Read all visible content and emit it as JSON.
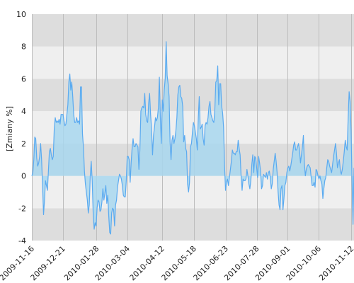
{
  "chart_data": {
    "type": "area",
    "ylabel": "[Zmiany %]",
    "ylim": [
      -4,
      10
    ],
    "y_ticks": [
      "-4",
      "-2",
      "0",
      "2",
      "4",
      "6",
      "8",
      "10"
    ],
    "x_ticks": [
      "2009-11-16",
      "2009-12-21",
      "2010-01-28",
      "2010-03-04",
      "2010-04-12",
      "2010-05-18",
      "2010-06-23",
      "2010-07-28",
      "2010-09-01",
      "2010-10-06",
      "2010-11-12"
    ],
    "x_range": [
      "2009-11-16",
      "2010-11-15"
    ],
    "grid": "alternating horizontal bands every 2 units; vertical lines at x ticks",
    "baseline": 0,
    "series": [
      {
        "values": [
          0.0,
          0.2,
          1.0,
          2.4,
          2.3,
          1.1,
          0.6,
          0.8,
          1.2,
          2.0,
          1.0,
          -0.6,
          -2.4,
          -1.5,
          -0.3,
          -0.6,
          -0.9,
          0.3,
          1.5,
          1.7,
          1.3,
          1.0,
          1.2,
          2.9,
          3.6,
          3.3,
          3.4,
          3.3,
          3.5,
          3.2,
          3.8,
          3.8,
          3.8,
          3.4,
          3.1,
          3.2,
          3.8,
          4.4,
          5.8,
          6.3,
          5.3,
          5.8,
          4.9,
          3.8,
          3.3,
          3.3,
          3.6,
          3.3,
          3.4,
          3.2,
          5.5,
          5.5,
          2.6,
          1.8,
          0.3,
          -0.5,
          -1.0,
          -1.5,
          -2.3,
          -1.8,
          0.0,
          0.9,
          -0.3,
          -2.3,
          -3.3,
          -2.9,
          -3.1,
          -2.0,
          -1.5,
          -1.6,
          -2.2,
          -2.1,
          -1.6,
          -0.8,
          -1.5,
          -1.1,
          -0.6,
          -1.7,
          -1.2,
          -2.5,
          -3.5,
          -3.6,
          -2.3,
          -2.0,
          -2.1,
          -3.1,
          -1.8,
          -1.5,
          -0.7,
          -0.3,
          0.1,
          0.0,
          -0.2,
          -0.6,
          -1.2,
          -1.3,
          -1.3,
          -0.3,
          1.2,
          1.2,
          1.0,
          -0.4,
          0.8,
          1.7,
          2.3,
          1.8,
          1.8,
          2.0,
          1.9,
          1.8,
          0.4,
          1.6,
          4.0,
          4.2,
          4.3,
          4.2,
          5.1,
          3.8,
          3.4,
          3.3,
          4.5,
          5.1,
          3.8,
          2.9,
          1.3,
          2.5,
          3.0,
          3.6,
          3.4,
          3.6,
          4.2,
          6.1,
          3.7,
          2.0,
          4.7,
          4.0,
          5.3,
          6.0,
          8.3,
          6.2,
          5.7,
          4.9,
          2.1,
          1.0,
          2.2,
          2.5,
          2.0,
          2.3,
          2.8,
          3.6,
          5.0,
          5.5,
          5.6,
          4.9,
          4.8,
          4.3,
          2.1,
          2.5,
          1.7,
          1.5,
          -0.5,
          -1.0,
          -0.4,
          1.8,
          2.0,
          2.7,
          3.3,
          3.1,
          2.7,
          2.3,
          1.6,
          3.6,
          4.9,
          2.9,
          3.0,
          3.2,
          2.3,
          1.9,
          3.1,
          3.3,
          3.2,
          3.6,
          4.3,
          4.6,
          3.8,
          3.6,
          3.4,
          3.3,
          4.1,
          5.8,
          5.9,
          6.8,
          4.4,
          5.7,
          5.7,
          4.3,
          3.9,
          3.0,
          0.6,
          -0.9,
          -0.4,
          -0.2,
          -0.6,
          -0.1,
          0.4,
          0.9,
          1.6,
          1.4,
          1.4,
          1.3,
          1.5,
          1.5,
          2.2,
          1.7,
          1.3,
          0.0,
          -0.9,
          -0.2,
          -0.3,
          -0.3,
          -0.2,
          0.4,
          0.0,
          -0.5,
          -0.8,
          -0.3,
          0.7,
          1.3,
          0.2,
          1.2,
          1.1,
          0.5,
          -0.1,
          1.2,
          0.8,
          0.3,
          -0.8,
          -0.6,
          0.1,
          0.0,
          -0.1,
          0.2,
          -0.2,
          0.2,
          0.3,
          -0.1,
          -0.8,
          -0.5,
          0.4,
          0.9,
          1.4,
          0.9,
          0.2,
          -1.0,
          -1.8,
          -2.1,
          -0.8,
          -0.6,
          -2.1,
          -1.4,
          -0.6,
          -0.4,
          0.2,
          0.5,
          0.6,
          0.3,
          0.6,
          1.0,
          1.4,
          1.9,
          2.1,
          1.6,
          1.6,
          1.8,
          2.0,
          1.6,
          0.8,
          1.3,
          1.8,
          2.5,
          0.8,
          0.0,
          0.4,
          0.6,
          0.7,
          0.6,
          0.5,
          -0.1,
          -0.6,
          -0.6,
          -0.4,
          -0.7,
          0.4,
          0.3,
          0.0,
          -0.2,
          0.0,
          -0.3,
          -0.5,
          -1.4,
          -0.8,
          -0.3,
          -0.1,
          0.5,
          1.0,
          0.9,
          0.6,
          0.4,
          0.2,
          0.7,
          1.2,
          1.6,
          2.0,
          1.4,
          0.5,
          0.8,
          1.0,
          0.3,
          0.1,
          0.4,
          0.9,
          1.5,
          2.2,
          1.8,
          1.6,
          3.6,
          5.2,
          4.6,
          2.8,
          -0.4,
          -3.0,
          0.5
        ]
      }
    ]
  },
  "colors": {
    "line": "#5aaaf0",
    "fill": "#a8d7ee",
    "band_light": "#efefef",
    "band_dark": "#dddddd",
    "vgrid": "#bdbdbd"
  }
}
